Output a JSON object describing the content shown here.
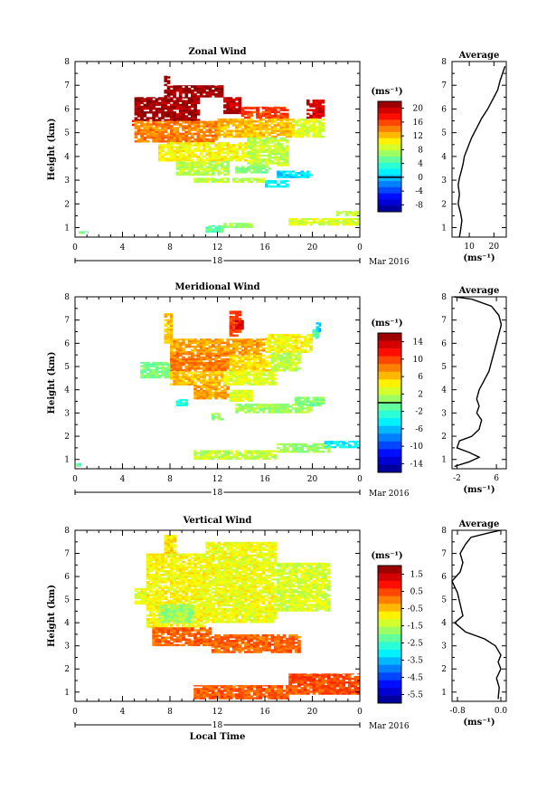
{
  "chart_data": [
    {
      "type": "heatmap",
      "title": "Zonal Wind",
      "ylabel": "Height (km)",
      "xlabel": "",
      "x_ticks": [
        "0",
        "4",
        "8",
        "12",
        "16",
        "20",
        "0"
      ],
      "y_ticks": [
        "1",
        "2",
        "3",
        "4",
        "5",
        "6",
        "7",
        "8"
      ],
      "xlim": [
        0,
        24
      ],
      "ylim": [
        0.6,
        8.0
      ],
      "date_label": "18",
      "month_label": "Mar 2016",
      "colorbar": {
        "unit": "(ms⁻¹)",
        "ticks": [
          "20",
          "16",
          "12",
          "8",
          "4",
          "0",
          "-4",
          "-8"
        ],
        "range": [
          -10,
          22
        ],
        "zero_line": 0
      },
      "features": [
        {
          "t": [
            4.8,
            5.0
          ],
          "h": [
            5.3,
            5.6
          ],
          "value": 16
        },
        {
          "t": [
            5.0,
            10.5
          ],
          "h": [
            5.5,
            6.5
          ],
          "value": 21
        },
        {
          "t": [
            7.5,
            8.0
          ],
          "h": [
            6.5,
            7.4
          ],
          "value": 21
        },
        {
          "t": [
            8.0,
            12.5
          ],
          "h": [
            6.5,
            7.0
          ],
          "value": 21
        },
        {
          "t": [
            12.5,
            14.0
          ],
          "h": [
            5.8,
            6.5
          ],
          "value": 20
        },
        {
          "t": [
            14.0,
            18.0
          ],
          "h": [
            5.6,
            6.1
          ],
          "value": 16
        },
        {
          "t": [
            19.5,
            21.0
          ],
          "h": [
            5.6,
            6.4
          ],
          "value": 19
        },
        {
          "t": [
            5.0,
            12.0
          ],
          "h": [
            4.6,
            5.5
          ],
          "value": 14
        },
        {
          "t": [
            12.0,
            18.5
          ],
          "h": [
            4.8,
            5.6
          ],
          "value": 12
        },
        {
          "t": [
            18.5,
            21.0
          ],
          "h": [
            4.8,
            5.6
          ],
          "value": 9
        },
        {
          "t": [
            7.0,
            14.5
          ],
          "h": [
            3.8,
            4.6
          ],
          "value": 10
        },
        {
          "t": [
            14.5,
            18.0
          ],
          "h": [
            3.6,
            4.8
          ],
          "value": 8
        },
        {
          "t": [
            8.5,
            13.0
          ],
          "h": [
            3.2,
            3.8
          ],
          "value": 8
        },
        {
          "t": [
            13.5,
            16.5
          ],
          "h": [
            3.3,
            3.6
          ],
          "value": 6
        },
        {
          "t": [
            17.0,
            20.0
          ],
          "h": [
            3.1,
            3.4
          ],
          "value": 1
        },
        {
          "t": [
            16.0,
            18.0
          ],
          "h": [
            2.7,
            3.0
          ],
          "value": 2
        },
        {
          "t": [
            10.0,
            16.0
          ],
          "h": [
            2.9,
            3.1
          ],
          "value": 8
        },
        {
          "t": [
            11.0,
            12.5
          ],
          "h": [
            0.8,
            1.1
          ],
          "value": 5
        },
        {
          "t": [
            12.5,
            15.0
          ],
          "h": [
            1.0,
            1.2
          ],
          "value": 7
        },
        {
          "t": [
            18.0,
            24.0
          ],
          "h": [
            1.1,
            1.4
          ],
          "value": 9
        },
        {
          "t": [
            22.0,
            24.0
          ],
          "h": [
            1.5,
            1.7
          ],
          "value": 8
        },
        {
          "t": [
            0.3,
            1.1
          ],
          "h": [
            0.75,
            0.85
          ],
          "value": 6
        }
      ]
    },
    {
      "type": "line",
      "title": "Average",
      "xlabel": "(ms⁻¹)",
      "x_ticks": [
        "10",
        "20"
      ],
      "xlim": [
        3,
        25
      ],
      "ylim": [
        0.6,
        8.0
      ],
      "y_ticks": [
        "1",
        "2",
        "3",
        "4",
        "5",
        "6",
        "7",
        "8"
      ],
      "points": [
        [
          6,
          0.6
        ],
        [
          6.5,
          0.9
        ],
        [
          7,
          1.3
        ],
        [
          6.5,
          1.6
        ],
        [
          5.5,
          2.0
        ],
        [
          6,
          2.4
        ],
        [
          5.5,
          2.8
        ],
        [
          6,
          3.1
        ],
        [
          6.8,
          3.4
        ],
        [
          7.5,
          3.7
        ],
        [
          8,
          4.0
        ],
        [
          9.5,
          4.4
        ],
        [
          11,
          4.8
        ],
        [
          13,
          5.2
        ],
        [
          15,
          5.6
        ],
        [
          17.5,
          6.0
        ],
        [
          19.5,
          6.4
        ],
        [
          21.5,
          6.8
        ],
        [
          22.5,
          7.2
        ],
        [
          23.5,
          7.5
        ],
        [
          24.5,
          7.8
        ]
      ]
    },
    {
      "type": "heatmap",
      "title": "Meridional Wind",
      "ylabel": "Height (km)",
      "xlabel": "",
      "x_ticks": [
        "0",
        "4",
        "8",
        "12",
        "16",
        "20",
        "0"
      ],
      "y_ticks": [
        "1",
        "2",
        "3",
        "4",
        "5",
        "6",
        "7",
        "8"
      ],
      "xlim": [
        0,
        24
      ],
      "ylim": [
        0.6,
        8.0
      ],
      "date_label": "18",
      "month_label": "Mar 2016",
      "colorbar": {
        "unit": "(ms⁻¹)",
        "ticks": [
          "14",
          "10",
          "6",
          "2",
          "-2",
          "-6",
          "-10",
          "-14"
        ],
        "range": [
          -16,
          16
        ],
        "zero_line": 0
      },
      "features": [
        {
          "t": [
            7.5,
            8.2
          ],
          "h": [
            6.0,
            7.3
          ],
          "value": 6
        },
        {
          "t": [
            8.0,
            16.0
          ],
          "h": [
            5.5,
            6.2
          ],
          "value": 7
        },
        {
          "t": [
            13.0,
            14.0
          ],
          "h": [
            6.3,
            7.4
          ],
          "value": 10
        },
        {
          "t": [
            13.5,
            14.2
          ],
          "h": [
            6.6,
            7.0
          ],
          "value": 13
        },
        {
          "t": [
            16.0,
            20.0
          ],
          "h": [
            5.6,
            6.4
          ],
          "value": 4
        },
        {
          "t": [
            20.0,
            20.6
          ],
          "h": [
            6.2,
            6.6
          ],
          "value": -1
        },
        {
          "t": [
            20.3,
            20.7
          ],
          "h": [
            6.5,
            6.9
          ],
          "value": -6
        },
        {
          "t": [
            8.0,
            13.0
          ],
          "h": [
            4.8,
            5.6
          ],
          "value": 8
        },
        {
          "t": [
            13.0,
            16.5
          ],
          "h": [
            4.8,
            5.5
          ],
          "value": 5
        },
        {
          "t": [
            16.5,
            19.0
          ],
          "h": [
            4.8,
            5.6
          ],
          "value": 2
        },
        {
          "t": [
            5.5,
            8.0
          ],
          "h": [
            4.5,
            5.2
          ],
          "value": 0
        },
        {
          "t": [
            8.0,
            12.5
          ],
          "h": [
            4.2,
            4.8
          ],
          "value": 6
        },
        {
          "t": [
            12.5,
            17.0
          ],
          "h": [
            4.2,
            4.8
          ],
          "value": 3
        },
        {
          "t": [
            10.0,
            13.0
          ],
          "h": [
            3.6,
            4.2
          ],
          "value": 7
        },
        {
          "t": [
            13.0,
            15.0
          ],
          "h": [
            3.5,
            4.0
          ],
          "value": 3
        },
        {
          "t": [
            8.5,
            9.5
          ],
          "h": [
            3.3,
            3.6
          ],
          "value": -3
        },
        {
          "t": [
            13.5,
            20.0
          ],
          "h": [
            3.0,
            3.4
          ],
          "value": 1
        },
        {
          "t": [
            18.5,
            21.0
          ],
          "h": [
            3.3,
            3.7
          ],
          "value": 0
        },
        {
          "t": [
            11.5,
            12.5
          ],
          "h": [
            2.7,
            3.0
          ],
          "value": 1
        },
        {
          "t": [
            10.0,
            17.0
          ],
          "h": [
            1.0,
            1.4
          ],
          "value": 2
        },
        {
          "t": [
            17.0,
            21.5
          ],
          "h": [
            1.3,
            1.7
          ],
          "value": 1
        },
        {
          "t": [
            21.0,
            24.0
          ],
          "h": [
            1.5,
            1.8
          ],
          "value": -4
        },
        {
          "t": [
            0.1,
            0.5
          ],
          "h": [
            0.7,
            0.85
          ],
          "value": -2
        }
      ]
    },
    {
      "type": "line",
      "title": "Average",
      "xlabel": "(ms⁻¹)",
      "x_ticks": [
        "-2",
        "6"
      ],
      "xlim": [
        -3,
        8
      ],
      "ylim": [
        0.6,
        8.0
      ],
      "y_ticks": [
        "1",
        "2",
        "3",
        "4",
        "5",
        "6",
        "7",
        "8"
      ],
      "points": [
        [
          -2.5,
          0.7
        ],
        [
          0.5,
          0.9
        ],
        [
          2.5,
          1.1
        ],
        [
          0.5,
          1.3
        ],
        [
          -2.0,
          1.5
        ],
        [
          -1.5,
          1.8
        ],
        [
          1.0,
          2.0
        ],
        [
          2.5,
          2.3
        ],
        [
          3.0,
          2.7
        ],
        [
          2.0,
          3.0
        ],
        [
          2.5,
          3.3
        ],
        [
          2.0,
          3.6
        ],
        [
          2.5,
          4.0
        ],
        [
          3.5,
          4.4
        ],
        [
          4.5,
          4.8
        ],
        [
          5.0,
          5.2
        ],
        [
          5.5,
          5.6
        ],
        [
          6.0,
          6.0
        ],
        [
          6.5,
          6.4
        ],
        [
          7.0,
          6.8
        ],
        [
          6.5,
          7.2
        ],
        [
          5.0,
          7.6
        ],
        [
          1.0,
          7.9
        ],
        [
          -2.5,
          8.0
        ]
      ]
    },
    {
      "type": "heatmap",
      "title": "Vertical Wind",
      "ylabel": "Height (km)",
      "xlabel": "Local Time",
      "x_ticks": [
        "0",
        "4",
        "8",
        "12",
        "16",
        "20",
        "0"
      ],
      "y_ticks": [
        "1",
        "2",
        "3",
        "4",
        "5",
        "6",
        "7",
        "8"
      ],
      "xlim": [
        0,
        24
      ],
      "ylim": [
        0.6,
        8.0
      ],
      "date_label": "18",
      "month_label": "Mar 2016",
      "colorbar": {
        "unit": "(ms⁻¹)",
        "ticks": [
          "1.5",
          "0.5",
          "-0.5",
          "-1.5",
          "-2.5",
          "-3.5",
          "-4.5",
          "-5.5"
        ],
        "range": [
          -6,
          2
        ]
      },
      "features": [
        {
          "t": [
            5.0,
            6.0
          ],
          "h": [
            4.8,
            5.5
          ],
          "value": -1.2
        },
        {
          "t": [
            6.0,
            11.0
          ],
          "h": [
            3.8,
            7.0
          ],
          "value": -1.0
        },
        {
          "t": [
            7.5,
            8.5
          ],
          "h": [
            7.0,
            7.8
          ],
          "value": -0.8
        },
        {
          "t": [
            11.0,
            17.0
          ],
          "h": [
            4.0,
            7.5
          ],
          "value": -1.1
        },
        {
          "t": [
            17.0,
            21.5
          ],
          "h": [
            4.5,
            6.6
          ],
          "value": -1.3
        },
        {
          "t": [
            7.0,
            10.0
          ],
          "h": [
            4.0,
            4.8
          ],
          "value": -1.8
        },
        {
          "t": [
            6.5,
            11.5
          ],
          "h": [
            3.0,
            3.8
          ],
          "value": 0.2
        },
        {
          "t": [
            11.5,
            19.0
          ],
          "h": [
            2.7,
            3.5
          ],
          "value": 0.2
        },
        {
          "t": [
            10.0,
            18.0
          ],
          "h": [
            0.7,
            1.3
          ],
          "value": 0.3
        },
        {
          "t": [
            18.0,
            24.0
          ],
          "h": [
            0.9,
            1.8
          ],
          "value": 0.4
        }
      ]
    },
    {
      "type": "line",
      "title": "Average",
      "xlabel": "(ms⁻¹)",
      "x_ticks": [
        "-0.8",
        "0.0"
      ],
      "xlim": [
        -0.9,
        0.1
      ],
      "ylim": [
        0.6,
        8.0
      ],
      "y_ticks": [
        "1",
        "2",
        "3",
        "4",
        "5",
        "6",
        "7",
        "8"
      ],
      "points": [
        [
          -0.05,
          0.7
        ],
        [
          -0.03,
          1.2
        ],
        [
          -0.08,
          1.6
        ],
        [
          0.0,
          2.0
        ],
        [
          -0.05,
          2.3
        ],
        [
          0.0,
          2.6
        ],
        [
          -0.1,
          3.0
        ],
        [
          -0.3,
          3.3
        ],
        [
          -0.65,
          3.6
        ],
        [
          -0.85,
          4.0
        ],
        [
          -0.7,
          4.3
        ],
        [
          -0.75,
          4.8
        ],
        [
          -0.8,
          5.3
        ],
        [
          -0.9,
          5.8
        ],
        [
          -0.75,
          6.2
        ],
        [
          -0.7,
          6.6
        ],
        [
          -0.75,
          7.0
        ],
        [
          -0.65,
          7.4
        ],
        [
          -0.55,
          7.7
        ],
        [
          -0.2,
          7.9
        ],
        [
          0.0,
          8.0
        ]
      ]
    }
  ]
}
